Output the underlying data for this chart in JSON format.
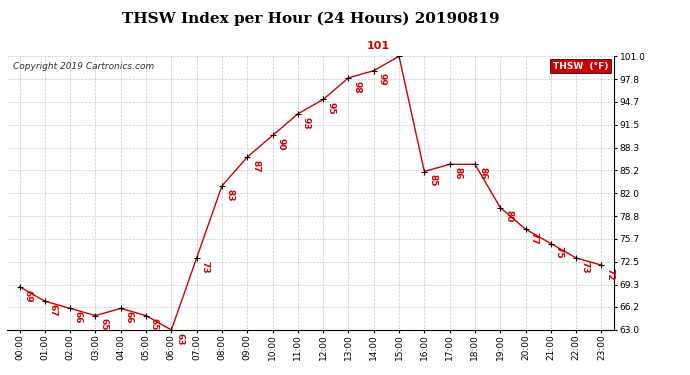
{
  "title": "THSW Index per Hour (24 Hours) 20190819",
  "copyright": "Copyright 2019 Cartronics.com",
  "legend_label": "THSW  (°F)",
  "hours": [
    0,
    1,
    2,
    3,
    4,
    5,
    6,
    7,
    8,
    9,
    10,
    11,
    12,
    13,
    14,
    15,
    16,
    17,
    18,
    19,
    20,
    21,
    22,
    23
  ],
  "values": [
    69,
    67,
    66,
    65,
    66,
    65,
    63,
    73,
    83,
    87,
    90,
    93,
    95,
    98,
    99,
    101,
    85,
    86,
    86,
    80,
    77,
    75,
    73,
    72
  ],
  "ylim_min": 63.0,
  "ylim_max": 101.0,
  "yticks": [
    63.0,
    66.2,
    69.3,
    72.5,
    75.7,
    78.8,
    82.0,
    85.2,
    88.3,
    91.5,
    94.7,
    97.8,
    101.0
  ],
  "line_color": "#cc0000",
  "marker_color": "#000000",
  "bg_color": "#ffffff",
  "grid_color": "#bbbbbb",
  "title_fontsize": 11,
  "tick_fontsize": 6.5,
  "annotation_fontsize": 6.5,
  "legend_bg": "#cc0000",
  "legend_text_color": "#ffffff",
  "copyright_fontsize": 6.5
}
